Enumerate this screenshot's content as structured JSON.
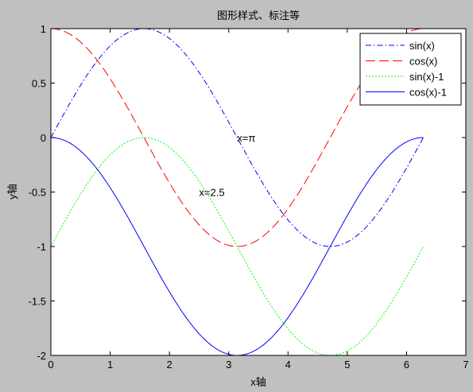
{
  "chart_data": {
    "type": "line",
    "title": "图形样式、标注等",
    "xlabel": "x轴",
    "ylabel": "y轴",
    "xlim": [
      0,
      7
    ],
    "ylim": [
      -2,
      1
    ],
    "grid": false,
    "legend_position": "top-right",
    "x_ticks": [
      "0",
      "1",
      "2",
      "3",
      "4",
      "5",
      "6",
      "7"
    ],
    "y_ticks": [
      "1",
      "0.5",
      "0",
      "-0.5",
      "-1",
      "-1.5",
      "-2"
    ],
    "x_range": [
      0,
      6.2832
    ],
    "series": [
      {
        "name": "sin(x)",
        "function": "sin(x)",
        "color": "#0000ff",
        "style": "dash-dot"
      },
      {
        "name": "cos(x)",
        "function": "cos(x)",
        "color": "#ff0000",
        "style": "dashed"
      },
      {
        "name": "sin(x)-1",
        "function": "sin(x)-1",
        "color": "#00ff00",
        "style": "dotted"
      },
      {
        "name": "cos(x)-1",
        "function": "cos(x)-1",
        "color": "#0000ff",
        "style": "solid"
      }
    ],
    "annotations": [
      {
        "text": "x=π",
        "x": 3.1416,
        "y": 0
      },
      {
        "text": "x=2.5",
        "x": 2.5,
        "y": -0.5
      }
    ],
    "colors": {
      "figure_background": "#c0c0c0",
      "axes_background": "#ffffff",
      "axes_color": "#000000"
    }
  }
}
